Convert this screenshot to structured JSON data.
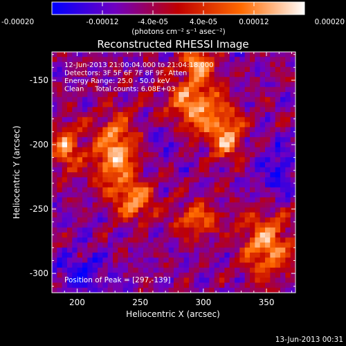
{
  "chart_data": {
    "type": "heatmap",
    "title": "Reconstructed RHESSI Image",
    "xlabel": "Heliocentric X (arcsec)",
    "ylabel": "Heliocentric Y (arcsec)",
    "xlim": [
      180,
      373
    ],
    "ylim": [
      -315,
      -128
    ],
    "x_ticks": [
      200,
      250,
      300,
      350
    ],
    "y_ticks": [
      -150,
      -200,
      -250,
      -300
    ],
    "colorbar": {
      "range": [
        -0.0002,
        0.0002
      ],
      "ticks": [
        "-0.00020",
        "-0.00012",
        "-4.0e-05",
        "4.0e-05",
        "0.00012",
        "0.00020"
      ],
      "tick_values": [
        -0.0002,
        -0.00012,
        -4e-05,
        4e-05,
        0.00012,
        0.0002
      ],
      "label": "(photons cm⁻² s⁻¹ asec⁻²)",
      "colors": [
        "#0000ff",
        "#7000c0",
        "#c00000",
        "#ff6a00",
        "#ffffff"
      ]
    },
    "info_lines": [
      "12-Jun-2013 21:00:04.000 to 21:04:18.000",
      "Detectors: 3F 5F 6F 7F 8F 9F, Atten",
      "Energy Range: 25.0 - 50.0 keV",
      "Clean     Total counts: 6.08E+03"
    ],
    "peak_text": "Position of Peak = [297,-139]",
    "peak_position": [
      297,
      -139
    ]
  },
  "footer_timestamp": "13-Jun-2013 00:31"
}
